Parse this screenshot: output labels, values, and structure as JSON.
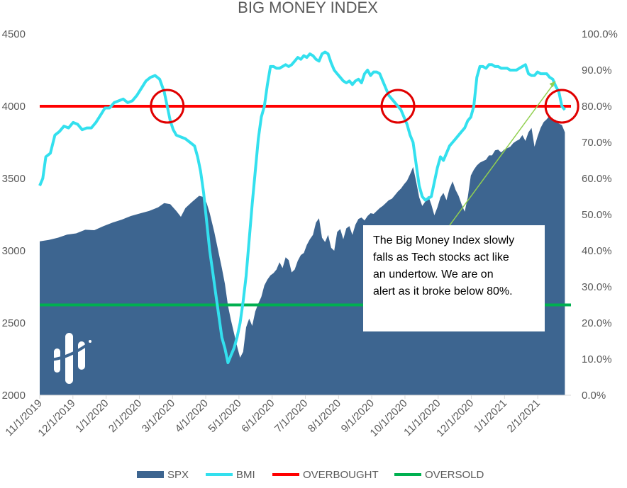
{
  "chart_data": {
    "type": "area",
    "title": "BIG MONEY INDEX",
    "x_tick_labels": [
      "11/1/2019",
      "12/1/2019",
      "1/1/2020",
      "2/1/2020",
      "3/1/2020",
      "4/1/2020",
      "5/1/2020",
      "6/1/2020",
      "7/1/2020",
      "8/1/2020",
      "9/1/2020",
      "10/1/2020",
      "11/1/2020",
      "12/1/2020",
      "1/1/2021",
      "2/1/2021"
    ],
    "y_left": {
      "min": 2000,
      "max": 4500,
      "ticks": [
        "2000",
        "2500",
        "3000",
        "3500",
        "4000",
        "4500"
      ]
    },
    "y_right": {
      "min": 0,
      "max": 100,
      "ticks": [
        "0.0%",
        "10.0%",
        "20.0%",
        "30.0%",
        "40.0%",
        "50.0%",
        "60.0%",
        "70.0%",
        "80.0%",
        "90.0%",
        "100.0%"
      ]
    },
    "grid": false,
    "legend_position": "bottom",
    "series": [
      {
        "name": "SPX",
        "type": "area",
        "axis": "left",
        "color": "#3d6590",
        "points": [
          [
            0,
            3065
          ],
          [
            6,
            3075
          ],
          [
            12,
            3090
          ],
          [
            18,
            3112
          ],
          [
            24,
            3120
          ],
          [
            30,
            3145
          ],
          [
            36,
            3142
          ],
          [
            42,
            3170
          ],
          [
            48,
            3195
          ],
          [
            54,
            3215
          ],
          [
            60,
            3240
          ],
          [
            66,
            3258
          ],
          [
            72,
            3275
          ],
          [
            78,
            3300
          ],
          [
            82,
            3330
          ],
          [
            86,
            3322
          ],
          [
            90,
            3275
          ],
          [
            93,
            3235
          ],
          [
            96,
            3295
          ],
          [
            100,
            3335
          ],
          [
            105,
            3380
          ],
          [
            108,
            3372
          ],
          [
            110,
            3330
          ],
          [
            112,
            3260
          ],
          [
            115,
            3130
          ],
          [
            118,
            2980
          ],
          [
            120,
            2880
          ],
          [
            122,
            2770
          ],
          [
            124,
            2620
          ],
          [
            126,
            2520
          ],
          [
            128,
            2430
          ],
          [
            130,
            2340
          ],
          [
            132,
            2260
          ],
          [
            134,
            2300
          ],
          [
            136,
            2470
          ],
          [
            138,
            2530
          ],
          [
            140,
            2480
          ],
          [
            142,
            2580
          ],
          [
            144,
            2635
          ],
          [
            146,
            2680
          ],
          [
            148,
            2760
          ],
          [
            150,
            2800
          ],
          [
            152,
            2830
          ],
          [
            154,
            2845
          ],
          [
            156,
            2870
          ],
          [
            158,
            2920
          ],
          [
            160,
            2880
          ],
          [
            162,
            2955
          ],
          [
            164,
            2935
          ],
          [
            166,
            2850
          ],
          [
            168,
            2870
          ],
          [
            170,
            2930
          ],
          [
            172,
            2970
          ],
          [
            174,
            2985
          ],
          [
            176,
            3040
          ],
          [
            178,
            3080
          ],
          [
            180,
            3110
          ],
          [
            182,
            3195
          ],
          [
            184,
            3225
          ],
          [
            186,
            3090
          ],
          [
            188,
            3060
          ],
          [
            190,
            3110
          ],
          [
            192,
            3020
          ],
          [
            194,
            3000
          ],
          [
            196,
            3130
          ],
          [
            198,
            3150
          ],
          [
            200,
            3080
          ],
          [
            202,
            3155
          ],
          [
            204,
            3170
          ],
          [
            206,
            3110
          ],
          [
            208,
            3180
          ],
          [
            210,
            3220
          ],
          [
            212,
            3230
          ],
          [
            214,
            3210
          ],
          [
            216,
            3240
          ],
          [
            218,
            3260
          ],
          [
            220,
            3255
          ],
          [
            222,
            3275
          ],
          [
            224,
            3295
          ],
          [
            226,
            3310
          ],
          [
            228,
            3330
          ],
          [
            230,
            3350
          ],
          [
            232,
            3360
          ],
          [
            234,
            3385
          ],
          [
            236,
            3410
          ],
          [
            238,
            3430
          ],
          [
            240,
            3460
          ],
          [
            242,
            3485
          ],
          [
            244,
            3530
          ],
          [
            246,
            3580
          ],
          [
            248,
            3480
          ],
          [
            250,
            3370
          ],
          [
            252,
            3310
          ],
          [
            254,
            3340
          ],
          [
            256,
            3380
          ],
          [
            258,
            3320
          ],
          [
            260,
            3245
          ],
          [
            262,
            3300
          ],
          [
            264,
            3370
          ],
          [
            266,
            3400
          ],
          [
            268,
            3350
          ],
          [
            270,
            3430
          ],
          [
            272,
            3480
          ],
          [
            274,
            3420
          ],
          [
            276,
            3380
          ],
          [
            278,
            3320
          ],
          [
            280,
            3270
          ],
          [
            282,
            3370
          ],
          [
            284,
            3520
          ],
          [
            286,
            3560
          ],
          [
            288,
            3590
          ],
          [
            290,
            3610
          ],
          [
            292,
            3620
          ],
          [
            294,
            3630
          ],
          [
            296,
            3660
          ],
          [
            298,
            3660
          ],
          [
            300,
            3695
          ],
          [
            302,
            3700
          ],
          [
            304,
            3680
          ],
          [
            306,
            3700
          ],
          [
            308,
            3710
          ],
          [
            310,
            3720
          ],
          [
            312,
            3745
          ],
          [
            314,
            3760
          ],
          [
            316,
            3770
          ],
          [
            318,
            3800
          ],
          [
            320,
            3760
          ],
          [
            322,
            3820
          ],
          [
            324,
            3850
          ],
          [
            326,
            3720
          ],
          [
            328,
            3790
          ],
          [
            330,
            3850
          ],
          [
            332,
            3890
          ],
          [
            334,
            3910
          ],
          [
            336,
            3935
          ],
          [
            338,
            3910
          ],
          [
            340,
            3905
          ],
          [
            342,
            3880
          ],
          [
            344,
            3870
          ],
          [
            346,
            3820
          ]
        ]
      },
      {
        "name": "BMI",
        "type": "line",
        "axis": "right",
        "color": "#33e0ee",
        "points": [
          [
            0,
            58
          ],
          [
            2,
            60
          ],
          [
            4,
            66
          ],
          [
            7,
            67
          ],
          [
            10,
            72
          ],
          [
            13,
            73
          ],
          [
            16,
            74.5
          ],
          [
            19,
            74
          ],
          [
            22,
            75.5
          ],
          [
            25,
            75
          ],
          [
            28,
            73.5
          ],
          [
            31,
            74
          ],
          [
            34,
            74
          ],
          [
            37,
            75.5
          ],
          [
            40,
            77.5
          ],
          [
            43,
            79.5
          ],
          [
            46,
            79.5
          ],
          [
            49,
            81
          ],
          [
            52,
            81.5
          ],
          [
            55,
            82
          ],
          [
            58,
            81
          ],
          [
            61,
            81.5
          ],
          [
            64,
            83
          ],
          [
            67,
            85
          ],
          [
            70,
            87
          ],
          [
            73,
            88
          ],
          [
            76,
            88.5
          ],
          [
            79,
            87.5
          ],
          [
            82,
            84
          ],
          [
            84,
            80
          ],
          [
            86,
            76
          ],
          [
            88,
            73.5
          ],
          [
            90,
            72
          ],
          [
            93,
            71.5
          ],
          [
            96,
            71
          ],
          [
            99,
            70
          ],
          [
            102,
            69
          ],
          [
            104,
            66
          ],
          [
            106,
            62
          ],
          [
            108,
            56
          ],
          [
            110,
            48
          ],
          [
            112,
            40
          ],
          [
            114,
            34
          ],
          [
            116,
            28
          ],
          [
            118,
            22
          ],
          [
            120,
            16
          ],
          [
            122,
            13
          ],
          [
            124,
            9
          ],
          [
            126,
            11
          ],
          [
            128,
            13
          ],
          [
            130,
            16
          ],
          [
            132,
            20
          ],
          [
            134,
            26
          ],
          [
            136,
            33
          ],
          [
            138,
            43
          ],
          [
            140,
            53
          ],
          [
            142,
            62
          ],
          [
            144,
            71
          ],
          [
            146,
            77
          ],
          [
            148,
            80
          ],
          [
            150,
            86
          ],
          [
            152,
            91
          ],
          [
            154,
            91
          ],
          [
            156,
            90.5
          ],
          [
            158,
            90.5
          ],
          [
            160,
            91
          ],
          [
            162,
            91.5
          ],
          [
            164,
            91
          ],
          [
            166,
            91.5
          ],
          [
            168,
            92.5
          ],
          [
            170,
            93.5
          ],
          [
            172,
            93
          ],
          [
            174,
            94
          ],
          [
            176,
            93.5
          ],
          [
            178,
            94.5
          ],
          [
            180,
            94
          ],
          [
            182,
            93
          ],
          [
            184,
            92.5
          ],
          [
            186,
            94.5
          ],
          [
            188,
            95
          ],
          [
            190,
            94.5
          ],
          [
            192,
            92
          ],
          [
            194,
            90
          ],
          [
            196,
            89
          ],
          [
            198,
            88
          ],
          [
            200,
            87
          ],
          [
            202,
            86.5
          ],
          [
            204,
            87
          ],
          [
            206,
            86
          ],
          [
            208,
            87
          ],
          [
            210,
            87.5
          ],
          [
            212,
            86.5
          ],
          [
            214,
            89
          ],
          [
            216,
            90
          ],
          [
            218,
            88.5
          ],
          [
            220,
            89.5
          ],
          [
            222,
            89.5
          ],
          [
            224,
            89
          ],
          [
            226,
            87
          ],
          [
            228,
            85
          ],
          [
            230,
            83
          ],
          [
            232,
            82
          ],
          [
            234,
            81
          ],
          [
            236,
            80
          ],
          [
            238,
            79
          ],
          [
            240,
            77
          ],
          [
            242,
            75
          ],
          [
            244,
            72
          ],
          [
            246,
            70
          ],
          [
            248,
            64
          ],
          [
            250,
            58
          ],
          [
            252,
            55
          ],
          [
            254,
            54
          ],
          [
            256,
            54.5
          ],
          [
            258,
            55
          ],
          [
            260,
            59
          ],
          [
            262,
            63
          ],
          [
            264,
            66
          ],
          [
            266,
            65
          ],
          [
            268,
            67
          ],
          [
            270,
            69
          ],
          [
            272,
            70
          ],
          [
            274,
            71
          ],
          [
            276,
            72
          ],
          [
            278,
            73
          ],
          [
            280,
            74
          ],
          [
            282,
            76
          ],
          [
            284,
            77
          ],
          [
            286,
            80
          ],
          [
            288,
            88
          ],
          [
            290,
            91
          ],
          [
            292,
            91
          ],
          [
            294,
            90.5
          ],
          [
            296,
            91.5
          ],
          [
            298,
            91.5
          ],
          [
            300,
            91
          ],
          [
            302,
            91
          ],
          [
            304,
            90.5
          ],
          [
            306,
            90.5
          ],
          [
            308,
            90.5
          ],
          [
            310,
            90
          ],
          [
            312,
            90
          ],
          [
            314,
            90
          ],
          [
            316,
            90.5
          ],
          [
            318,
            91
          ],
          [
            320,
            91.5
          ],
          [
            322,
            89
          ],
          [
            324,
            88.5
          ],
          [
            326,
            88.5
          ],
          [
            328,
            89.5
          ],
          [
            330,
            89
          ],
          [
            332,
            89
          ],
          [
            334,
            89
          ],
          [
            336,
            88
          ],
          [
            338,
            87.5
          ],
          [
            340,
            85.5
          ],
          [
            342,
            84
          ],
          [
            344,
            80
          ],
          [
            346,
            79
          ]
        ]
      },
      {
        "name": "OVERBOUGHT",
        "type": "hline",
        "axis": "right",
        "color": "#ff0000",
        "value": 80
      },
      {
        "name": "OVERSOLD",
        "type": "hline",
        "axis": "right",
        "color": "#00b050",
        "value": 25
      }
    ],
    "annotations": [
      {
        "type": "circle",
        "x": 84,
        "y_right": 80,
        "color": "#e00000"
      },
      {
        "type": "circle",
        "x": 236,
        "y_right": 80,
        "color": "#e00000"
      },
      {
        "type": "circle",
        "x": 344,
        "y_right": 80,
        "color": "#e00000"
      },
      {
        "type": "callout",
        "lines": [
          "The Big Money Index slowly",
          "falls as Tech stocks act like",
          "an undertow. We are on",
          "alert as it broke below 80%."
        ],
        "arrow_color": "#92d050",
        "arrow_to": {
          "x": 340,
          "y_right": 87
        }
      }
    ]
  }
}
